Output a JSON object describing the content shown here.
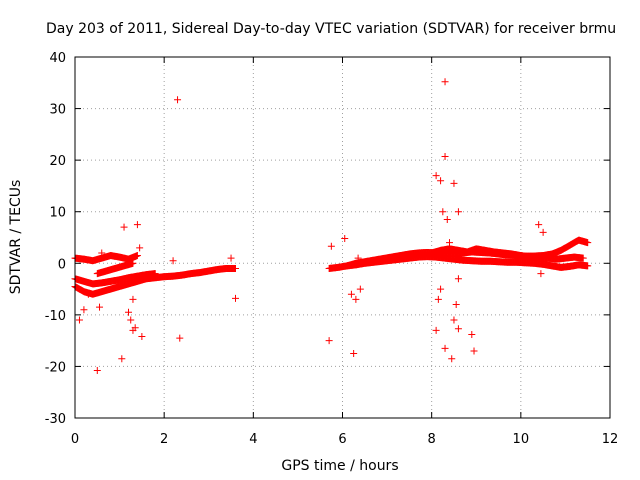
{
  "chart_data": {
    "type": "scatter",
    "title": "Day 203 of 2011, Sidereal Day-to-day VTEC variation (SDTVAR) for receiver brmu",
    "xlabel": "GPS time / hours",
    "ylabel": "SDTVAR / TECUs",
    "xlim": [
      0,
      12
    ],
    "ylim": [
      -30,
      40
    ],
    "xticks": [
      "0",
      "2",
      "4",
      "6",
      "8",
      "10",
      "12"
    ],
    "yticks": [
      "-30",
      "-20",
      "-10",
      "0",
      "10",
      "20",
      "30",
      "40"
    ],
    "grid": true,
    "marker": "+",
    "color": "#ff0000",
    "segments": [
      {
        "x": [
          0.0,
          0.2,
          0.4,
          0.6,
          0.8,
          1.0,
          1.2,
          1.4
        ],
        "y": [
          1.0,
          0.8,
          0.5,
          1.0,
          1.5,
          1.2,
          0.8,
          1.5
        ]
      },
      {
        "x": [
          0.0,
          0.2,
          0.4,
          0.6,
          0.8,
          1.0,
          1.2,
          1.4,
          1.6,
          1.8,
          2.0,
          2.2,
          2.4,
          2.6,
          2.8,
          3.0,
          3.2,
          3.4,
          3.6
        ],
        "y": [
          -4.5,
          -5.5,
          -6.0,
          -5.5,
          -5.0,
          -4.5,
          -4.0,
          -3.5,
          -3.0,
          -2.8,
          -2.6,
          -2.5,
          -2.3,
          -2.0,
          -1.8,
          -1.5,
          -1.2,
          -1.0,
          -1.0
        ]
      },
      {
        "x": [
          0.0,
          0.2,
          0.4,
          0.6,
          0.8,
          1.0,
          1.2,
          1.4,
          1.6,
          1.8
        ],
        "y": [
          -3.0,
          -3.5,
          -4.0,
          -3.8,
          -3.5,
          -3.2,
          -2.8,
          -2.5,
          -2.2,
          -2.0
        ]
      },
      {
        "x": [
          0.5,
          0.7,
          0.9,
          1.1,
          1.3
        ],
        "y": [
          -2.0,
          -1.5,
          -1.0,
          -0.5,
          0.0
        ]
      },
      {
        "x": [
          5.7,
          5.9,
          6.1,
          6.3,
          6.5,
          6.7,
          6.9,
          7.1,
          7.3,
          7.5,
          7.7,
          7.9,
          8.1,
          8.3,
          8.5,
          8.7,
          8.9,
          9.1,
          9.3,
          9.5,
          9.7,
          9.9,
          10.1,
          10.3,
          10.5,
          10.7,
          10.9,
          11.1,
          11.3,
          11.5
        ],
        "y": [
          -1.0,
          -0.8,
          -0.5,
          0.0,
          0.3,
          0.6,
          0.9,
          1.2,
          1.5,
          1.8,
          2.0,
          2.1,
          2.0,
          1.9,
          1.9,
          2.0,
          2.2,
          2.1,
          2.0,
          1.8,
          1.6,
          1.5,
          1.4,
          1.4,
          1.5,
          1.8,
          2.5,
          3.5,
          4.5,
          4.0
        ]
      },
      {
        "x": [
          6.1,
          6.3,
          6.5,
          6.7,
          6.9,
          7.1,
          7.3,
          7.5,
          7.7,
          7.9,
          8.1,
          8.3,
          8.5,
          8.7,
          8.9,
          9.1,
          9.3,
          9.5,
          9.7,
          9.9,
          10.1,
          10.3,
          10.5,
          10.7,
          10.9,
          11.1,
          11.3,
          11.5
        ],
        "y": [
          -0.5,
          -0.3,
          0.0,
          0.2,
          0.4,
          0.6,
          0.8,
          1.0,
          1.2,
          1.3,
          1.2,
          1.0,
          0.8,
          0.6,
          0.5,
          0.4,
          0.4,
          0.3,
          0.2,
          0.2,
          0.1,
          0.0,
          -0.2,
          -0.5,
          -0.8,
          -0.6,
          -0.3,
          -0.5
        ]
      },
      {
        "x": [
          8.0,
          8.2,
          8.4,
          8.6,
          8.8,
          9.0,
          9.2,
          9.4,
          9.6,
          9.8,
          10.0,
          10.2,
          10.4,
          10.6,
          10.8,
          11.0,
          11.2,
          11.4
        ],
        "y": [
          2.0,
          2.5,
          2.8,
          2.5,
          2.2,
          2.8,
          2.5,
          2.2,
          2.0,
          1.8,
          1.5,
          1.2,
          1.0,
          1.0,
          0.8,
          1.0,
          1.2,
          1.0
        ]
      }
    ],
    "scatter_points": [
      {
        "x": 0.1,
        "y": -11.0
      },
      {
        "x": 0.2,
        "y": -9.0
      },
      {
        "x": 0.3,
        "y": -6.0
      },
      {
        "x": 0.5,
        "y": -20.8
      },
      {
        "x": 0.55,
        "y": -8.5
      },
      {
        "x": 0.6,
        "y": 2.0
      },
      {
        "x": 1.05,
        "y": -18.5
      },
      {
        "x": 1.1,
        "y": 7.0
      },
      {
        "x": 1.2,
        "y": -9.5
      },
      {
        "x": 1.25,
        "y": -11.0
      },
      {
        "x": 1.3,
        "y": -13.0
      },
      {
        "x": 1.3,
        "y": -7.0
      },
      {
        "x": 1.35,
        "y": -12.5
      },
      {
        "x": 1.4,
        "y": 7.5
      },
      {
        "x": 1.45,
        "y": 3.0
      },
      {
        "x": 1.5,
        "y": -14.2
      },
      {
        "x": 2.3,
        "y": 31.7
      },
      {
        "x": 2.35,
        "y": -14.5
      },
      {
        "x": 2.2,
        "y": 0.5
      },
      {
        "x": 3.5,
        "y": 1.0
      },
      {
        "x": 3.6,
        "y": -6.8
      },
      {
        "x": 5.7,
        "y": -15.0
      },
      {
        "x": 5.75,
        "y": 3.3
      },
      {
        "x": 6.05,
        "y": 4.8
      },
      {
        "x": 6.25,
        "y": -17.5
      },
      {
        "x": 6.2,
        "y": -6.0
      },
      {
        "x": 6.3,
        "y": -7.0
      },
      {
        "x": 6.35,
        "y": 1.0
      },
      {
        "x": 6.4,
        "y": -5.0
      },
      {
        "x": 8.1,
        "y": -13.0
      },
      {
        "x": 8.1,
        "y": 17.0
      },
      {
        "x": 8.15,
        "y": -7.0
      },
      {
        "x": 8.2,
        "y": 16.0
      },
      {
        "x": 8.2,
        "y": -5.0
      },
      {
        "x": 8.25,
        "y": 10.0
      },
      {
        "x": 8.3,
        "y": 35.2
      },
      {
        "x": 8.3,
        "y": 20.7
      },
      {
        "x": 8.3,
        "y": -16.5
      },
      {
        "x": 8.35,
        "y": 8.5
      },
      {
        "x": 8.4,
        "y": 4.0
      },
      {
        "x": 8.45,
        "y": -18.5
      },
      {
        "x": 8.5,
        "y": 15.5
      },
      {
        "x": 8.5,
        "y": -11.0
      },
      {
        "x": 8.55,
        "y": -8.0
      },
      {
        "x": 8.6,
        "y": 10.0
      },
      {
        "x": 8.6,
        "y": -12.7
      },
      {
        "x": 8.6,
        "y": -3.0
      },
      {
        "x": 8.9,
        "y": -13.8
      },
      {
        "x": 8.95,
        "y": -17.0
      },
      {
        "x": 8.6,
        "y": 1.0
      },
      {
        "x": 10.4,
        "y": 7.5
      },
      {
        "x": 10.45,
        "y": -2.0
      },
      {
        "x": 10.5,
        "y": 6.0
      }
    ]
  }
}
